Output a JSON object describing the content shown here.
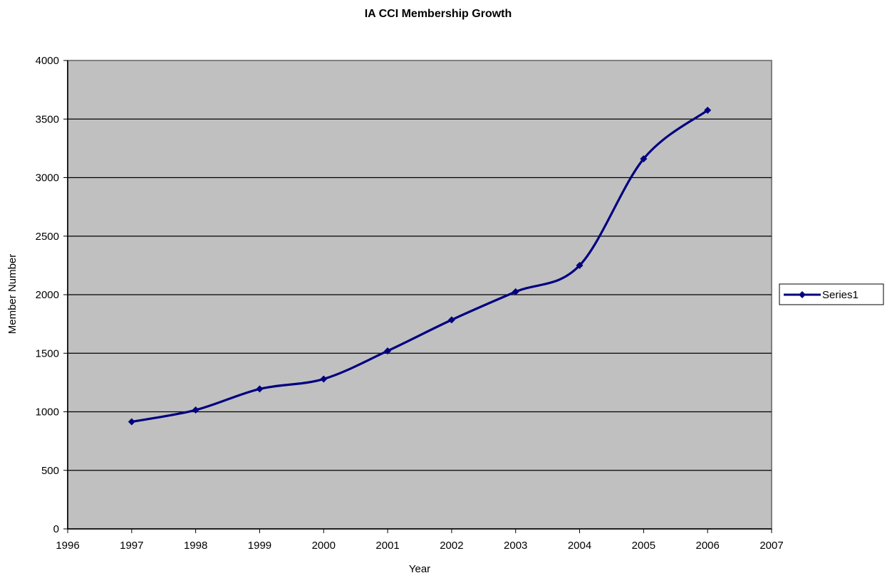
{
  "chart_data": {
    "type": "line",
    "title": "IA CCI Membership Growth",
    "xlabel": "Year",
    "ylabel": "Member Number",
    "xlim": [
      1996,
      2007
    ],
    "ylim": [
      0,
      4000
    ],
    "x_ticks": [
      1996,
      1997,
      1998,
      1999,
      2000,
      2001,
      2002,
      2003,
      2004,
      2005,
      2006,
      2007
    ],
    "y_ticks": [
      0,
      500,
      1000,
      1500,
      2000,
      2500,
      3000,
      3500,
      4000
    ],
    "grid": "horizontal",
    "legend_position": "right",
    "plot_background": "#c0c0c0",
    "series": [
      {
        "name": "Series1",
        "color": "#000080",
        "marker": "diamond",
        "smooth": true,
        "x": [
          1997,
          1998,
          1999,
          2000,
          2001,
          2002,
          2003,
          2004,
          2005,
          2006
        ],
        "y": [
          915,
          1015,
          1195,
          1280,
          1520,
          1785,
          2025,
          2250,
          3160,
          3575
        ]
      }
    ]
  }
}
